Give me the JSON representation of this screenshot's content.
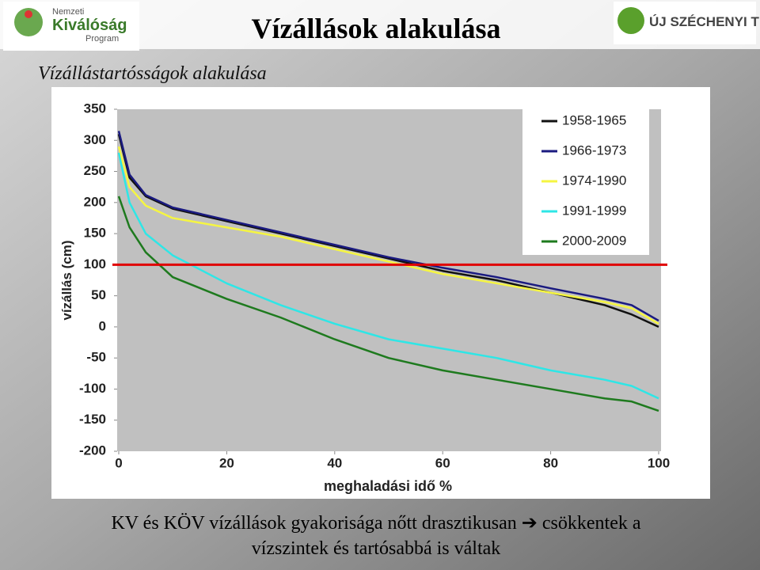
{
  "slide": {
    "title": "Vízállások alakulása",
    "subtitle": "Vízállástartósságok alakulása",
    "logo_left": [
      "Nemzeti",
      "Kiválóság",
      "Program"
    ],
    "logo_right": "ÚJ SZÉCHENYI TERV",
    "caption": [
      "KV és KÖV vízállások gyakorisága nőtt drasztikusan ➔ csökkentek a",
      "vízszintek és tartósabbá is váltak"
    ]
  },
  "chart_data": {
    "type": "line",
    "xlabel": "meghaladási idő %",
    "ylabel": "vízállás (cm)",
    "x": [
      0,
      2,
      5,
      10,
      20,
      30,
      40,
      50,
      60,
      70,
      80,
      90,
      95,
      100
    ],
    "series": [
      {
        "name": "1958-1965",
        "color": "#111111",
        "values": [
          310,
          240,
          210,
          190,
          170,
          150,
          130,
          110,
          90,
          75,
          55,
          35,
          20,
          0
        ]
      },
      {
        "name": "1966-1973",
        "color": "#1a1a80",
        "values": [
          315,
          245,
          212,
          192,
          172,
          152,
          132,
          112,
          95,
          80,
          62,
          45,
          35,
          10
        ]
      },
      {
        "name": "1974-1990",
        "color": "#f5f542",
        "values": [
          290,
          225,
          195,
          175,
          160,
          145,
          125,
          105,
          85,
          70,
          55,
          40,
          30,
          5
        ]
      },
      {
        "name": "1991-1999",
        "color": "#2ee6e6",
        "values": [
          280,
          200,
          150,
          115,
          70,
          35,
          5,
          -20,
          -35,
          -50,
          -70,
          -85,
          -95,
          -115
        ]
      },
      {
        "name": "2000-2009",
        "color": "#1e7a1e",
        "values": [
          210,
          160,
          120,
          80,
          45,
          15,
          -20,
          -50,
          -70,
          -85,
          -100,
          -115,
          -120,
          -135
        ]
      }
    ],
    "reference_line": {
      "value": 100,
      "color": "#e00000"
    },
    "xlim": [
      0,
      100
    ],
    "xticks": [
      0,
      20,
      40,
      60,
      80,
      100
    ],
    "ylim": [
      -200,
      350
    ],
    "yticks": [
      -200,
      -150,
      -100,
      -50,
      0,
      50,
      100,
      150,
      200,
      250,
      300,
      350
    ],
    "legend": "upper right"
  }
}
